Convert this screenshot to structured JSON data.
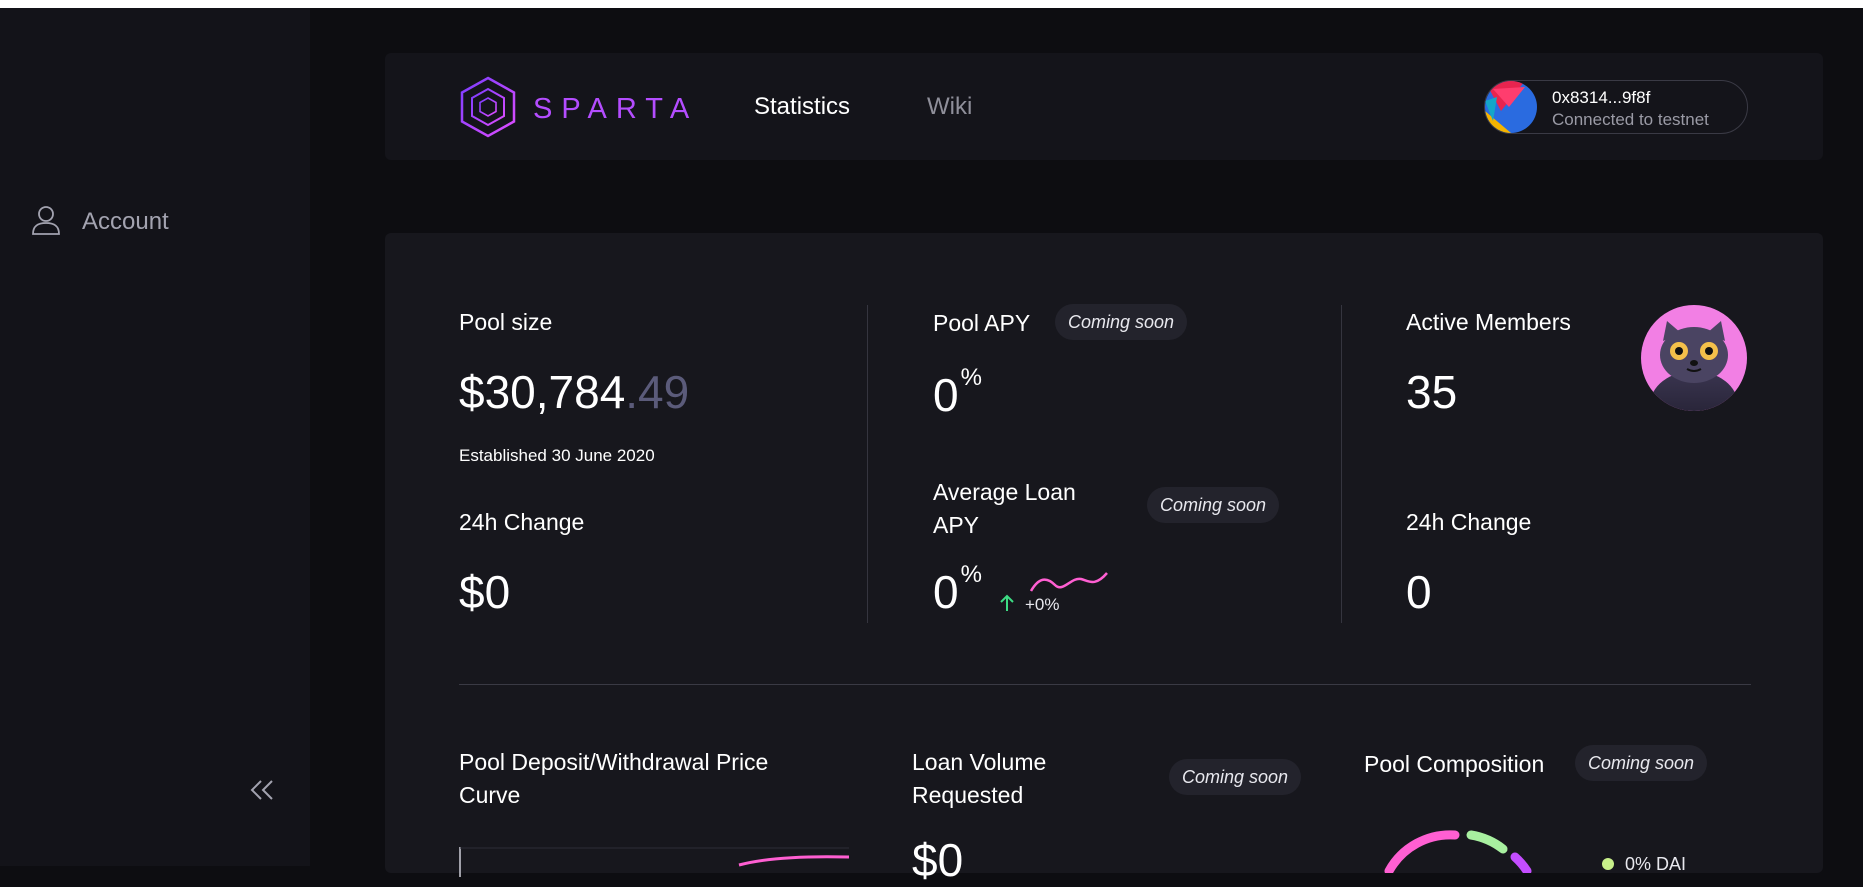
{
  "sidebar": {
    "account_label": "Account",
    "account_icon": "user-icon",
    "collapse_icon": "double-chevron-left-icon"
  },
  "header": {
    "logo_text": "SPARTA",
    "nav": {
      "statistics": "Statistics",
      "wiki": "Wiki"
    },
    "wallet": {
      "address": "0x8314...9f8f",
      "network": "Connected to testnet"
    }
  },
  "stats": {
    "pool_size": {
      "title": "Pool size",
      "value_int": "$30,784",
      "value_dec": ".49",
      "established": "Established 30 June 2020",
      "change_title": "24h Change",
      "change_value": "$0"
    },
    "pool_apy": {
      "title": "Pool APY",
      "badge": "Coming soon",
      "value": "0",
      "unit": "%",
      "loan_title": "Average Loan APY",
      "loan_badge": "Coming soon",
      "loan_value": "0",
      "loan_unit": "%",
      "trend": "+0%"
    },
    "members": {
      "title": "Active Members",
      "value": "35",
      "change_title": "24h Change",
      "change_value": "0"
    }
  },
  "charts": {
    "price_curve_title": "Pool Deposit/Withdrawal Price Curve",
    "loan_volume_title": "Loan Volume Requested",
    "loan_volume_badge": "Coming soon",
    "loan_volume_value": "$0",
    "composition_title": "Pool Composition",
    "composition_badge": "Coming soon",
    "composition_legend": "0% DAI"
  },
  "colors": {
    "accent": "#b44dff",
    "pink": "#ff5fd2",
    "green": "#3ddc84",
    "background": "#0d0d11",
    "panel": "#17171d"
  }
}
